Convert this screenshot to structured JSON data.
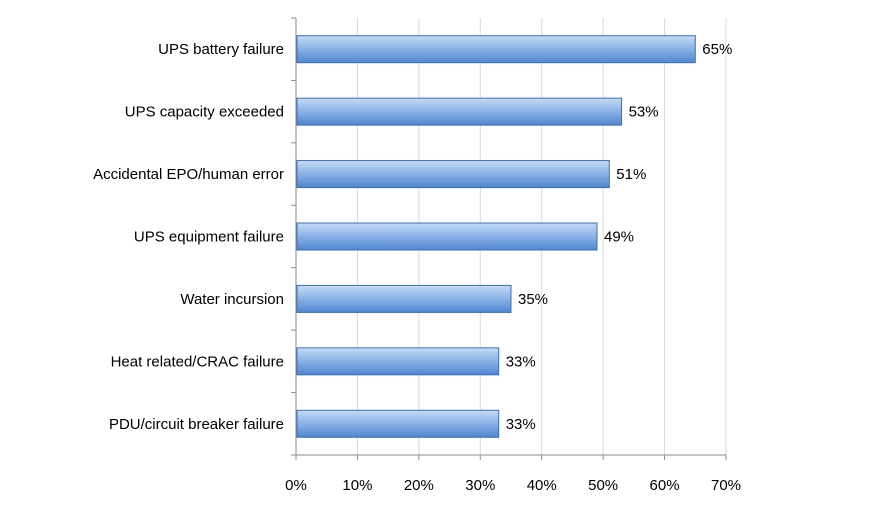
{
  "chart_data": {
    "type": "bar",
    "orientation": "horizontal",
    "categories": [
      "UPS battery failure",
      "UPS capacity exceeded",
      "Accidental EPO/human error",
      "UPS equipment failure",
      "Water incursion",
      "Heat related/CRAC failure",
      "PDU/circuit breaker failure"
    ],
    "values": [
      65,
      53,
      51,
      49,
      35,
      33,
      33
    ],
    "value_labels": [
      "65%",
      "53%",
      "51%",
      "49%",
      "35%",
      "33%",
      "33%"
    ],
    "x_ticks": [
      "0%",
      "10%",
      "20%",
      "30%",
      "40%",
      "50%",
      "60%",
      "70%"
    ],
    "xlim": [
      0,
      70
    ],
    "grid": true,
    "legend": "none",
    "title": "",
    "xlabel": "",
    "ylabel": "",
    "colors": {
      "bar_fill_top": "#a9c8ef",
      "bar_fill_bottom": "#4f86d0",
      "bar_stroke": "#3d6eb4",
      "grid": "#d9d9d9",
      "axis": "#8c8c8c"
    }
  }
}
